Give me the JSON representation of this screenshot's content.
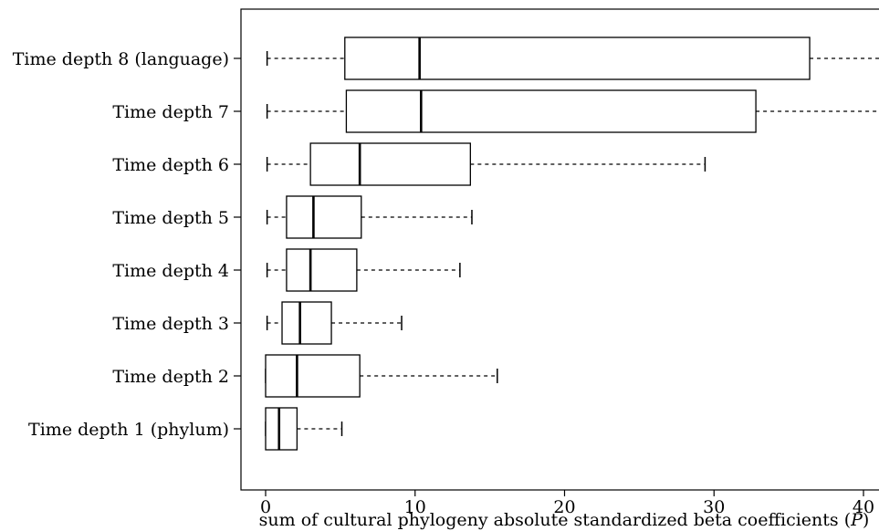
{
  "chart_data": {
    "type": "boxplot",
    "orientation": "horizontal",
    "xlabel": "sum of cultural phylogeny absolute standardized beta coefficients (",
    "xlabel_italic": "P",
    "xlabel_suffix": ")",
    "xlim": [
      -1.7,
      41
    ],
    "xticks": [
      0,
      10,
      20,
      30,
      40
    ],
    "grid": false,
    "categories": [
      "Time depth 8 (language)",
      "Time depth 7",
      "Time depth 6",
      "Time depth 5",
      "Time depth 4",
      "Time depth 3",
      "Time depth 2",
      "Time depth 1 (phylum)"
    ],
    "boxes": [
      {
        "min": 0.1,
        "q1": 5.3,
        "median": 10.3,
        "q3": 36.4,
        "max": 42
      },
      {
        "min": 0.1,
        "q1": 5.4,
        "median": 10.4,
        "q3": 32.8,
        "max": 42
      },
      {
        "min": 0.1,
        "q1": 3.0,
        "median": 6.3,
        "q3": 13.7,
        "max": 29.4
      },
      {
        "min": 0.1,
        "q1": 1.4,
        "median": 3.2,
        "q3": 6.4,
        "max": 13.8
      },
      {
        "min": 0.1,
        "q1": 1.4,
        "median": 3.0,
        "q3": 6.1,
        "max": 13.0
      },
      {
        "min": 0.1,
        "q1": 1.1,
        "median": 2.3,
        "q3": 4.4,
        "max": 9.1
      },
      {
        "min": 0.0,
        "q1": 0.0,
        "median": 2.1,
        "q3": 6.3,
        "max": 15.5
      },
      {
        "min": 0.0,
        "q1": 0.0,
        "median": 0.9,
        "q3": 2.1,
        "max": 5.1
      }
    ]
  }
}
